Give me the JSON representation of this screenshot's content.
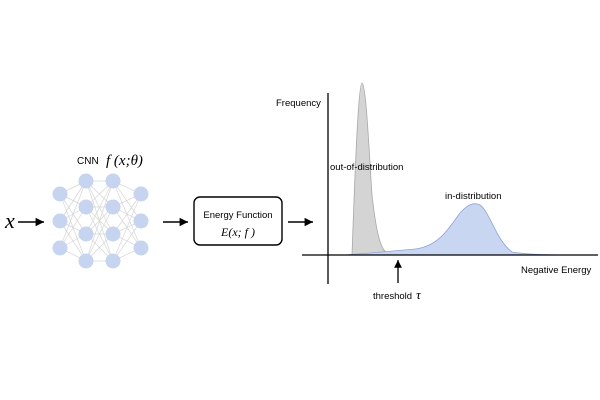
{
  "input": {
    "symbol": "x"
  },
  "cnn": {
    "label": "CNN",
    "function": "f (x;θ)"
  },
  "energy_box": {
    "title": "Energy Function",
    "formula": "E(x; f )"
  },
  "plot": {
    "y_axis_label": "Frequency",
    "x_axis_label": "Negative Energy",
    "ood_label": "out-of-distribution",
    "id_label": "in-distribution",
    "threshold_label": "threshold",
    "threshold_symbol": "τ"
  },
  "colors": {
    "node": "#c6d4ef",
    "edge": "#d6d6d6",
    "ood_fill": "#d4d4d4",
    "ood_stroke": "#a8a8a8",
    "id_fill": "#c9d6f1",
    "id_stroke": "#8ea5d8",
    "line": "#000000"
  }
}
